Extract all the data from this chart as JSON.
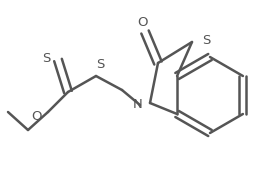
{
  "bg_color": "#ffffff",
  "line_color": "#555555",
  "label_color": "#555555",
  "line_width": 1.8,
  "font_size": 9.5,
  "figsize": [
    2.72,
    1.7
  ],
  "dpi": 100,
  "xlim": [
    0,
    272
  ],
  "ylim": [
    0,
    170
  ]
}
